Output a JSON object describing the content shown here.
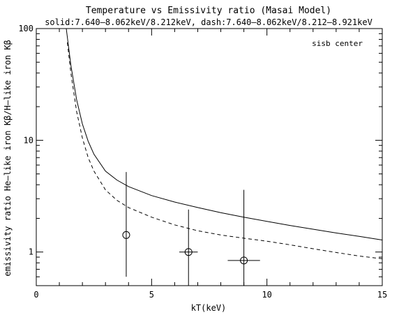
{
  "chart_data": {
    "type": "line",
    "title": "Temperature vs Emissivity ratio (Masai Model)",
    "subtitle": "solid:7.640–8.062keV/8.212keV, dash:7.640–8.062keV/8.212–8.921keV",
    "annotation": "sisb center",
    "xlabel": "kT(keV)",
    "ylabel": "emissivity ratio He–like iron Kβ/H–like iron Kβ",
    "xlim": [
      0,
      15
    ],
    "ylim": [
      0.5,
      100
    ],
    "yscale": "log",
    "x_ticks": [
      0,
      5,
      10,
      15
    ],
    "y_ticks": [
      1,
      10,
      100
    ],
    "grid": false,
    "series": [
      {
        "style": "solid",
        "x": [
          1.3,
          1.5,
          1.75,
          2.0,
          2.25,
          2.5,
          3.0,
          3.5,
          4.0,
          5.0,
          6.0,
          7.0,
          8.0,
          9.0,
          10.0,
          11.0,
          12.0,
          13.0,
          14.0,
          15.0
        ],
        "y": [
          100,
          47,
          23,
          14,
          9.8,
          7.5,
          5.3,
          4.4,
          3.85,
          3.2,
          2.8,
          2.5,
          2.25,
          2.05,
          1.88,
          1.73,
          1.6,
          1.48,
          1.38,
          1.28
        ]
      },
      {
        "style": "dashed",
        "x": [
          1.35,
          1.5,
          1.75,
          2.0,
          2.25,
          2.5,
          3.0,
          3.5,
          4.0,
          5.0,
          6.0,
          7.0,
          8.0,
          9.0,
          10.0,
          11.0,
          12.0,
          13.0,
          14.0,
          15.0
        ],
        "y": [
          75,
          40,
          18,
          10.5,
          7.0,
          5.3,
          3.6,
          2.9,
          2.5,
          2.05,
          1.75,
          1.55,
          1.42,
          1.33,
          1.25,
          1.16,
          1.07,
          0.99,
          0.92,
          0.87
        ]
      }
    ],
    "points": [
      {
        "x": 3.9,
        "y": 1.42,
        "x_err": [
          0,
          0
        ],
        "y_err": [
          0.6,
          5.2
        ]
      },
      {
        "x": 6.6,
        "y": 1.0,
        "x_err": [
          6.2,
          7.0
        ],
        "y_err": [
          0.5,
          2.4
        ]
      },
      {
        "x": 9.0,
        "y": 0.84,
        "x_err": [
          8.3,
          9.7
        ],
        "y_err": [
          0.5,
          3.6
        ]
      }
    ]
  }
}
